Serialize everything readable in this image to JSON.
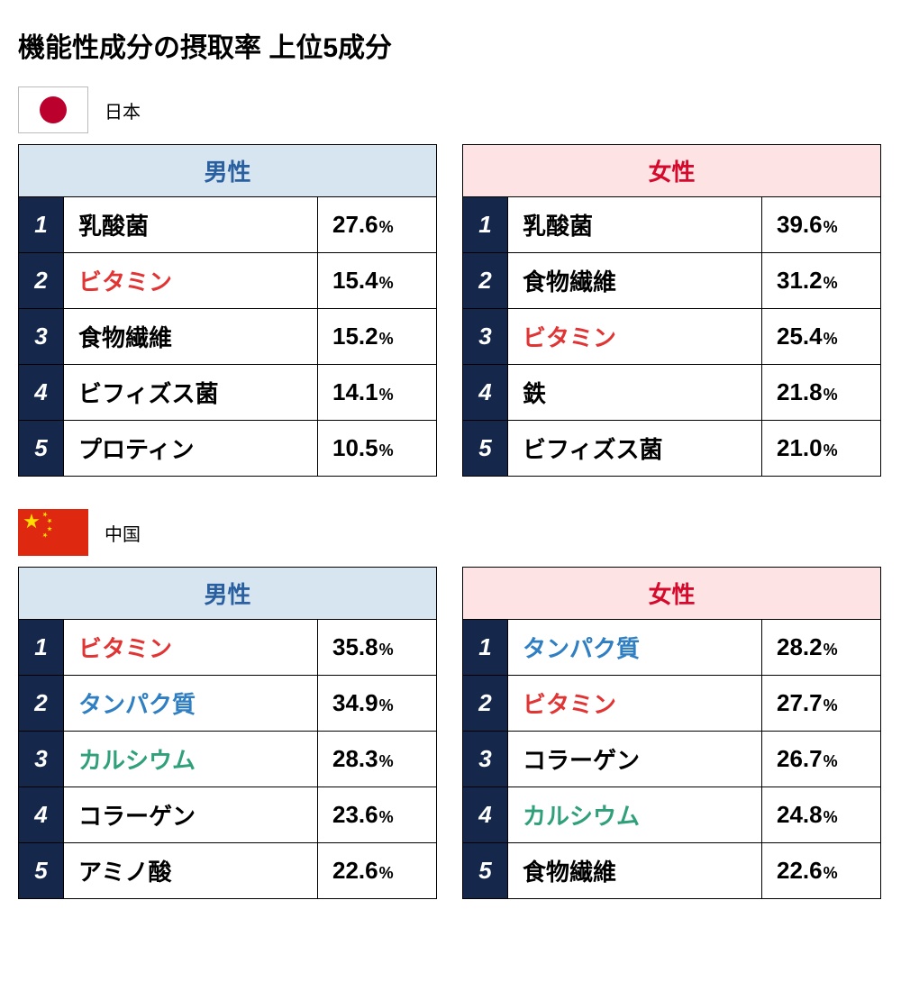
{
  "title": "機能性成分の摂取率 上位5成分",
  "percent_unit": "%",
  "colors": {
    "rank_bg": "#15284b",
    "rank_fg": "#ffffff",
    "male_header_bg": "#d6e5f0",
    "male_header_fg": "#2a5fa0",
    "female_header_bg": "#fde3e3",
    "female_header_fg": "#d4092c",
    "text_default": "#000000",
    "text_red": "#e13434",
    "text_blue": "#2f7fc2",
    "text_green": "#2fa07a",
    "border": "#000000",
    "japan_red": "#bc002d",
    "china_red": "#de2910",
    "china_yellow": "#ffde00"
  },
  "countries": [
    {
      "flag": "japan",
      "label": "日本",
      "tables": [
        {
          "gender": "male",
          "header": "男性",
          "rows": [
            {
              "rank": "1",
              "name": "乳酸菌",
              "name_color": "default",
              "pct": "27.6"
            },
            {
              "rank": "2",
              "name": "ビタミン",
              "name_color": "red",
              "pct": "15.4"
            },
            {
              "rank": "3",
              "name": "食物繊維",
              "name_color": "default",
              "pct": "15.2"
            },
            {
              "rank": "4",
              "name": "ビフィズス菌",
              "name_color": "default",
              "pct": "14.1"
            },
            {
              "rank": "5",
              "name": "プロティン",
              "name_color": "default",
              "pct": "10.5"
            }
          ]
        },
        {
          "gender": "female",
          "header": "女性",
          "rows": [
            {
              "rank": "1",
              "name": "乳酸菌",
              "name_color": "default",
              "pct": "39.6"
            },
            {
              "rank": "2",
              "name": "食物繊維",
              "name_color": "default",
              "pct": "31.2"
            },
            {
              "rank": "3",
              "name": "ビタミン",
              "name_color": "red",
              "pct": "25.4"
            },
            {
              "rank": "4",
              "name": "鉄",
              "name_color": "default",
              "pct": "21.8"
            },
            {
              "rank": "5",
              "name": "ビフィズス菌",
              "name_color": "default",
              "pct": "21.0"
            }
          ]
        }
      ]
    },
    {
      "flag": "china",
      "label": "中国",
      "tables": [
        {
          "gender": "male",
          "header": "男性",
          "rows": [
            {
              "rank": "1",
              "name": "ビタミン",
              "name_color": "red",
              "pct": "35.8"
            },
            {
              "rank": "2",
              "name": "タンパク質",
              "name_color": "blue",
              "pct": "34.9"
            },
            {
              "rank": "3",
              "name": "カルシウム",
              "name_color": "green",
              "pct": "28.3"
            },
            {
              "rank": "4",
              "name": "コラーゲン",
              "name_color": "default",
              "pct": "23.6"
            },
            {
              "rank": "5",
              "name": "アミノ酸",
              "name_color": "default",
              "pct": "22.6"
            }
          ]
        },
        {
          "gender": "female",
          "header": "女性",
          "rows": [
            {
              "rank": "1",
              "name": "タンパク質",
              "name_color": "blue",
              "pct": "28.2"
            },
            {
              "rank": "2",
              "name": "ビタミン",
              "name_color": "red",
              "pct": "27.7"
            },
            {
              "rank": "3",
              "name": "コラーゲン",
              "name_color": "default",
              "pct": "26.7"
            },
            {
              "rank": "4",
              "name": "カルシウム",
              "name_color": "green",
              "pct": "24.8"
            },
            {
              "rank": "5",
              "name": "食物繊維",
              "name_color": "default",
              "pct": "22.6"
            }
          ]
        }
      ]
    }
  ]
}
